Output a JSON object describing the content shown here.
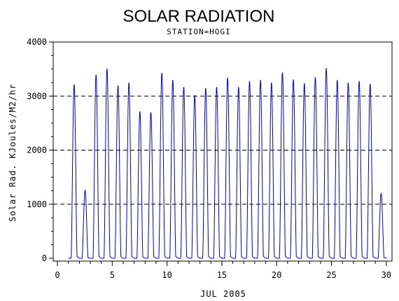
{
  "chart_data": {
    "type": "line",
    "title": "SOLAR RADIATION",
    "subtitle": "STATION=HOGI",
    "xlabel": "JUL 2005",
    "ylabel": "Solar Rad. KJoules/M2/hr",
    "xlim": [
      0,
      30.2
    ],
    "ylim": [
      0,
      4000
    ],
    "xticks": [
      0,
      5,
      10,
      15,
      20,
      25,
      30
    ],
    "xtick_labels": [
      "0",
      "5",
      "10",
      "15",
      "20",
      "25",
      "30"
    ],
    "yticks": [
      0,
      1000,
      2000,
      3000,
      4000
    ],
    "ytick_labels": [
      "0",
      "1000",
      "2000",
      "3000",
      "4000"
    ],
    "grid": "horizontal dashed",
    "line_color": "#0000cc",
    "daily_peaks": [
      {
        "day": 1,
        "peak": 3220
      },
      {
        "day": 2,
        "peak": 1260
      },
      {
        "day": 3,
        "peak": 3400
      },
      {
        "day": 4,
        "peak": 3510
      },
      {
        "day": 5,
        "peak": 3200
      },
      {
        "day": 6,
        "peak": 3250
      },
      {
        "day": 7,
        "peak": 2720
      },
      {
        "day": 8,
        "peak": 2700
      },
      {
        "day": 9,
        "peak": 3430
      },
      {
        "day": 10,
        "peak": 3300
      },
      {
        "day": 11,
        "peak": 3170
      },
      {
        "day": 12,
        "peak": 3020
      },
      {
        "day": 13,
        "peak": 3150
      },
      {
        "day": 14,
        "peak": 3170
      },
      {
        "day": 15,
        "peak": 3340
      },
      {
        "day": 16,
        "peak": 3170
      },
      {
        "day": 17,
        "peak": 3280
      },
      {
        "day": 18,
        "peak": 3300
      },
      {
        "day": 19,
        "peak": 3250
      },
      {
        "day": 20,
        "peak": 3440
      },
      {
        "day": 21,
        "peak": 3310
      },
      {
        "day": 22,
        "peak": 3240
      },
      {
        "day": 23,
        "peak": 3350
      },
      {
        "day": 24,
        "peak": 3520
      },
      {
        "day": 25,
        "peak": 3300
      },
      {
        "day": 26,
        "peak": 3250
      },
      {
        "day": 27,
        "peak": 3280
      },
      {
        "day": 28,
        "peak": 3230
      },
      {
        "day": 29,
        "peak": 1200
      }
    ]
  }
}
